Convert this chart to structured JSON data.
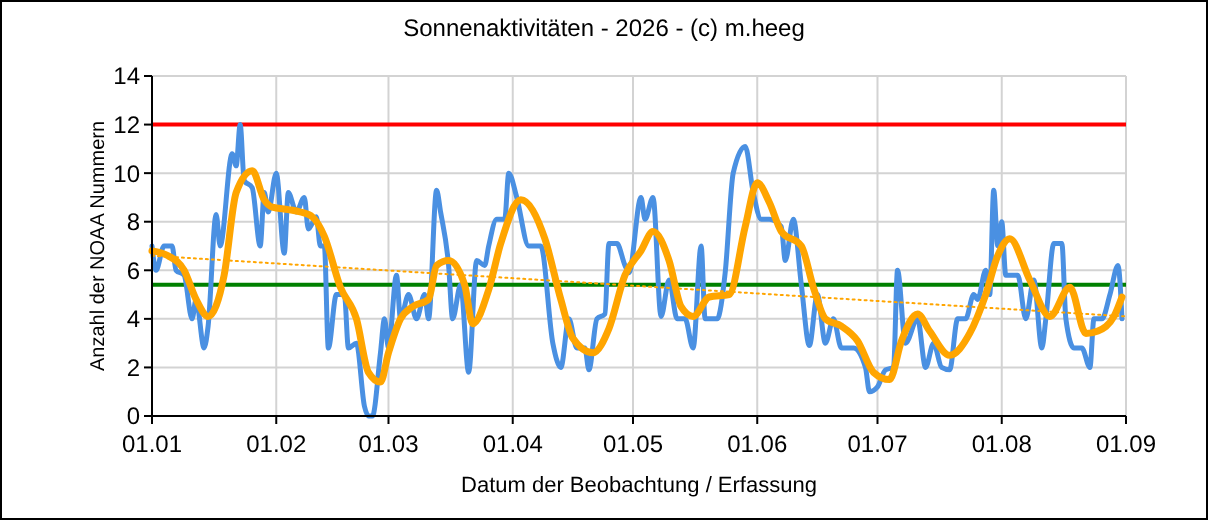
{
  "chart_data": {
    "type": "line",
    "title": "Sonnenaktivitäten - 2026 - (c) m.heeg",
    "xlabel": "Datum der Beobachtung / Erfassung",
    "ylabel": "Anzahl der NOAA Nummern",
    "xlim": [
      "2026-01-01",
      "2026-09-01"
    ],
    "ylim": [
      0,
      14
    ],
    "yticks": [
      0,
      2,
      4,
      6,
      8,
      10,
      12,
      14
    ],
    "xticks": [
      {
        "value": "2026-01-01",
        "label": "01.01"
      },
      {
        "value": "2026-02-01",
        "label": "01.02"
      },
      {
        "value": "2026-03-01",
        "label": "01.03"
      },
      {
        "value": "2026-04-01",
        "label": "01.04"
      },
      {
        "value": "2026-05-01",
        "label": "01.05"
      },
      {
        "value": "2026-06-01",
        "label": "01.06"
      },
      {
        "value": "2026-07-01",
        "label": "01.07"
      },
      {
        "value": "2026-08-01",
        "label": "01.08"
      },
      {
        "value": "2026-09-01",
        "label": "01.09"
      }
    ],
    "grid": true,
    "marker": "none",
    "ref_lines": [
      {
        "axis": "y",
        "value": 12,
        "color": "#ff0000"
      },
      {
        "axis": "y",
        "value": 5.4,
        "color": "#008000"
      }
    ],
    "series": [
      {
        "color": "#4a90e2",
        "line_style": "solid",
        "x": [
          "2026-01-01",
          "2026-01-02",
          "2026-01-04",
          "2026-01-06",
          "2026-01-07",
          "2026-01-09",
          "2026-01-11",
          "2026-01-12",
          "2026-01-14",
          "2026-01-15",
          "2026-01-17",
          "2026-01-18",
          "2026-01-21",
          "2026-01-22",
          "2026-01-23",
          "2026-01-24",
          "2026-01-26",
          "2026-01-28",
          "2026-01-29",
          "2026-01-30",
          "2026-02-01",
          "2026-02-03",
          "2026-02-04",
          "2026-02-06",
          "2026-02-08",
          "2026-02-09",
          "2026-02-11",
          "2026-02-12",
          "2026-02-13",
          "2026-02-14",
          "2026-02-16",
          "2026-02-18",
          "2026-02-19",
          "2026-02-21",
          "2026-02-23",
          "2026-02-24",
          "2026-02-25",
          "2026-02-27",
          "2026-02-28",
          "2026-03-01",
          "2026-03-03",
          "2026-03-04",
          "2026-03-06",
          "2026-03-08",
          "2026-03-10",
          "2026-03-11",
          "2026-03-13",
          "2026-03-14",
          "2026-03-16",
          "2026-03-17",
          "2026-03-19",
          "2026-03-21",
          "2026-03-23",
          "2026-03-25",
          "2026-03-26",
          "2026-03-28",
          "2026-03-30",
          "2026-03-31",
          "2026-04-02",
          "2026-04-05",
          "2026-04-08",
          "2026-04-11",
          "2026-04-13",
          "2026-04-15",
          "2026-04-17",
          "2026-04-19",
          "2026-04-20",
          "2026-04-22",
          "2026-04-24",
          "2026-04-25",
          "2026-04-27",
          "2026-04-29",
          "2026-04-30",
          "2026-05-03",
          "2026-05-04",
          "2026-05-06",
          "2026-05-08",
          "2026-05-10",
          "2026-05-12",
          "2026-05-14",
          "2026-05-16",
          "2026-05-18",
          "2026-05-19",
          "2026-05-22",
          "2026-05-24",
          "2026-05-26",
          "2026-05-29",
          "2026-05-31",
          "2026-06-02",
          "2026-06-04",
          "2026-06-07",
          "2026-06-08",
          "2026-06-10",
          "2026-06-12",
          "2026-06-14",
          "2026-06-16",
          "2026-06-18",
          "2026-06-20",
          "2026-06-22",
          "2026-06-25",
          "2026-06-28",
          "2026-06-29",
          "2026-07-01",
          "2026-07-03",
          "2026-07-05",
          "2026-07-06",
          "2026-07-08",
          "2026-07-11",
          "2026-07-13",
          "2026-07-15",
          "2026-07-17",
          "2026-07-19",
          "2026-07-21",
          "2026-07-23",
          "2026-07-25",
          "2026-07-26",
          "2026-07-28",
          "2026-07-29",
          "2026-07-30",
          "2026-07-31",
          "2026-08-01",
          "2026-08-02",
          "2026-08-05",
          "2026-08-07",
          "2026-08-09",
          "2026-08-11",
          "2026-08-12",
          "2026-08-14",
          "2026-08-16",
          "2026-08-17",
          "2026-08-19",
          "2026-08-21",
          "2026-08-23",
          "2026-08-24",
          "2026-08-26",
          "2026-08-28",
          "2026-08-30",
          "2026-08-31"
        ],
        "values": [
          7.0,
          6.0,
          7.0,
          7.0,
          6.0,
          5.8,
          4.0,
          4.8,
          2.8,
          3.7,
          8.3,
          7.0,
          10.8,
          10.3,
          12.0,
          9.7,
          9.4,
          7.0,
          9.2,
          8.4,
          10.0,
          6.7,
          9.2,
          8.4,
          9.0,
          7.7,
          8.2,
          7.0,
          7.0,
          2.8,
          5.0,
          5.0,
          2.8,
          3.0,
          0.4,
          0.0,
          0.0,
          2.6,
          4.0,
          2.8,
          5.8,
          4.0,
          5.0,
          4.0,
          5.0,
          4.0,
          9.3,
          8.4,
          6.2,
          4.0,
          5.4,
          1.8,
          6.4,
          6.2,
          7.0,
          8.1,
          8.1,
          10.0,
          9.0,
          7.0,
          7.0,
          3.0,
          2.0,
          4.0,
          2.8,
          2.8,
          1.9,
          4.0,
          4.2,
          7.1,
          7.1,
          6.2,
          5.9,
          9.0,
          8.1,
          9.0,
          4.1,
          5.6,
          4.0,
          4.0,
          2.8,
          7.0,
          4.0,
          4.0,
          5.9,
          10.0,
          11.1,
          9.2,
          8.1,
          8.1,
          7.8,
          6.4,
          8.1,
          5.4,
          2.9,
          5.0,
          3.0,
          4.0,
          2.8,
          2.8,
          2.0,
          1.0,
          1.2,
          1.9,
          2.0,
          6.0,
          3.0,
          4.0,
          2.0,
          3.0,
          2.0,
          1.9,
          4.0,
          4.0,
          5.0,
          4.8,
          6.0,
          5.0,
          9.3,
          7.0,
          8.0,
          5.8,
          5.8,
          4.0,
          5.6,
          2.8,
          4.0,
          7.1,
          7.1,
          4.0,
          2.8,
          2.8,
          2.0,
          4.0,
          4.0,
          5.0,
          6.2,
          4.0
        ]
      },
      {
        "color": "#ffa500",
        "line_style": "solid",
        "x": [
          "2026-01-01",
          "2026-01-05",
          "2026-01-09",
          "2026-01-12",
          "2026-01-15",
          "2026-01-19",
          "2026-01-22",
          "2026-01-26",
          "2026-01-29",
          "2026-01-31",
          "2026-02-04",
          "2026-02-07",
          "2026-02-10",
          "2026-02-13",
          "2026-02-17",
          "2026-02-21",
          "2026-02-24",
          "2026-02-27",
          "2026-03-01",
          "2026-03-04",
          "2026-03-07",
          "2026-03-11",
          "2026-03-13",
          "2026-03-16",
          "2026-03-20",
          "2026-03-22",
          "2026-03-26",
          "2026-03-29",
          "2026-04-03",
          "2026-04-09",
          "2026-04-13",
          "2026-04-16",
          "2026-04-21",
          "2026-04-25",
          "2026-04-29",
          "2026-05-03",
          "2026-05-06",
          "2026-05-10",
          "2026-05-13",
          "2026-05-16",
          "2026-05-20",
          "2026-05-25",
          "2026-05-29",
          "2026-06-01",
          "2026-06-04",
          "2026-06-07",
          "2026-06-12",
          "2026-06-15",
          "2026-06-18",
          "2026-06-22",
          "2026-06-26",
          "2026-06-30",
          "2026-07-04",
          "2026-07-07",
          "2026-07-11",
          "2026-07-14",
          "2026-07-19",
          "2026-07-24",
          "2026-07-28",
          "2026-07-31",
          "2026-08-03",
          "2026-08-08",
          "2026-08-13",
          "2026-08-18",
          "2026-08-22",
          "2026-08-25",
          "2026-08-29",
          "2026-08-31"
        ],
        "values": [
          6.8,
          6.6,
          6.0,
          4.8,
          4.1,
          5.8,
          9.2,
          10.1,
          8.9,
          8.6,
          8.5,
          8.4,
          8.2,
          7.4,
          5.3,
          4.0,
          1.8,
          1.4,
          2.6,
          4.0,
          4.5,
          4.8,
          6.2,
          6.4,
          5.4,
          3.8,
          5.2,
          7.1,
          8.9,
          7.3,
          4.8,
          3.2,
          2.6,
          3.6,
          5.8,
          6.8,
          7.6,
          6.4,
          4.5,
          4.1,
          4.9,
          5.0,
          7.8,
          9.6,
          8.8,
          7.6,
          7.0,
          5.3,
          4.0,
          3.7,
          3.1,
          1.8,
          1.5,
          3.1,
          4.2,
          3.5,
          2.5,
          3.4,
          5.0,
          6.6,
          7.3,
          5.6,
          4.1,
          5.3,
          3.4,
          3.5,
          4.1,
          4.9
        ]
      },
      {
        "color": "#ffa500",
        "line_style": "dotted",
        "x": [
          "2026-01-01",
          "2026-09-01"
        ],
        "values": [
          6.6,
          4.1
        ]
      }
    ]
  }
}
